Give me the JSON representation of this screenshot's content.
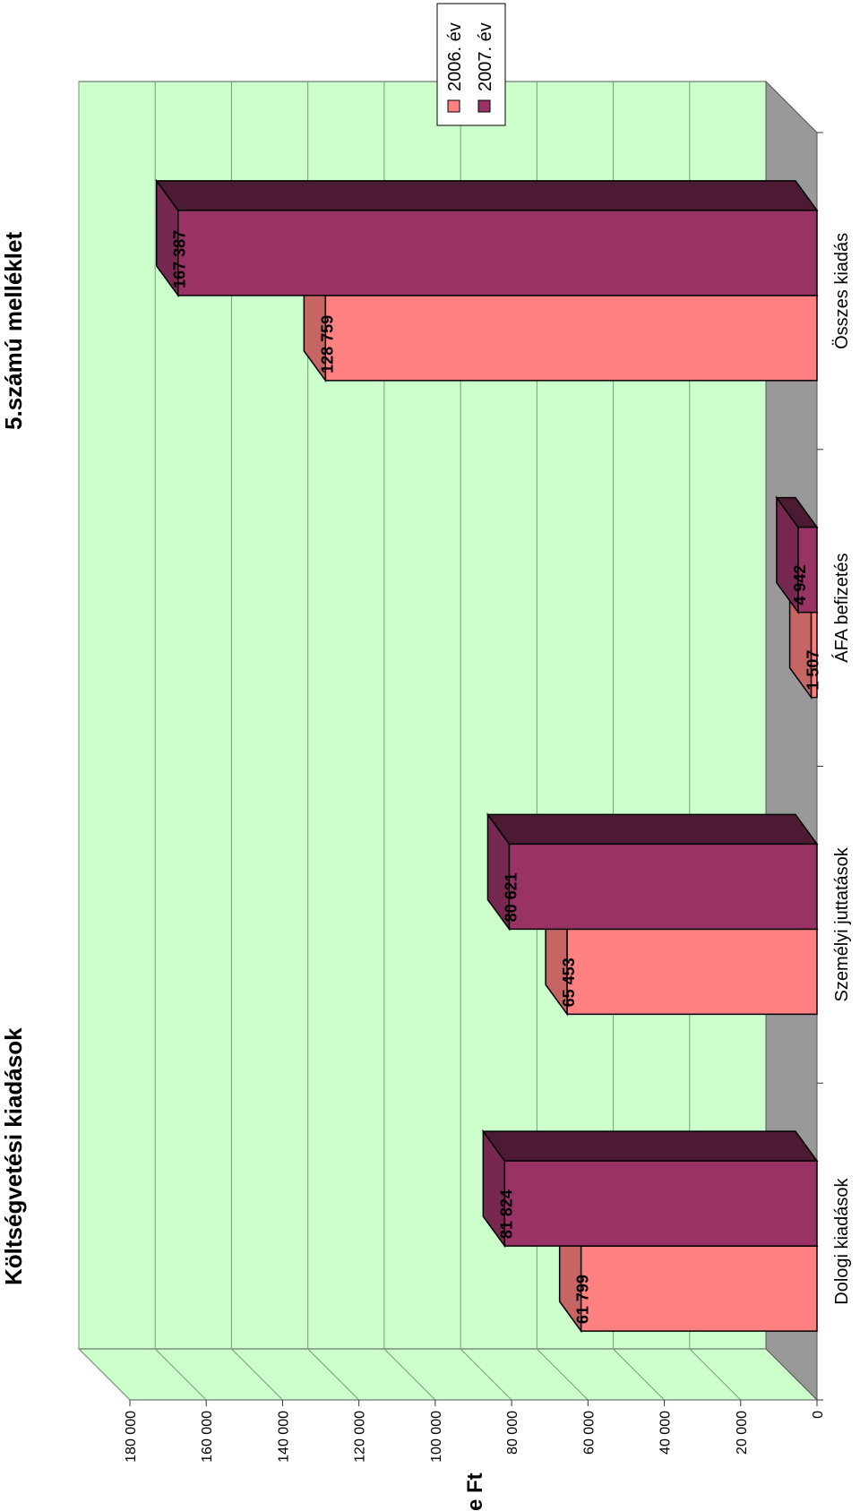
{
  "header": {
    "title": "Költségvetési kiadások",
    "annex": "5.számú melléklet"
  },
  "colors": {
    "wall": "#ccffcc",
    "floor": "#999999",
    "series_2006": "#ff8080",
    "series_2007": "#993366"
  },
  "chart_data": {
    "type": "bar",
    "title": "Költségvetési kiadások",
    "ylabel": "e Ft",
    "xlabel": "",
    "ylim": [
      0,
      180000
    ],
    "grid": true,
    "legend_position": "right",
    "three_d": true,
    "categories": [
      "Dologi kiadások",
      "Személyi juttatások",
      "ÁFA befizetés",
      "Összes kiadás"
    ],
    "y_ticks": [
      "0",
      "20 000",
      "40 000",
      "60 000",
      "80 000",
      "100 000",
      "120 000",
      "140 000",
      "160 000",
      "180 000"
    ],
    "series": [
      {
        "name": "2006. év",
        "values": [
          61799,
          65453,
          1507,
          128759
        ],
        "labels": [
          "61 799",
          "65 453",
          "1 507",
          "128 759"
        ]
      },
      {
        "name": "2007. év",
        "values": [
          81824,
          80621,
          4942,
          167387
        ],
        "labels": [
          "81 824",
          "80 621",
          "4 942",
          "167 387"
        ]
      }
    ]
  }
}
